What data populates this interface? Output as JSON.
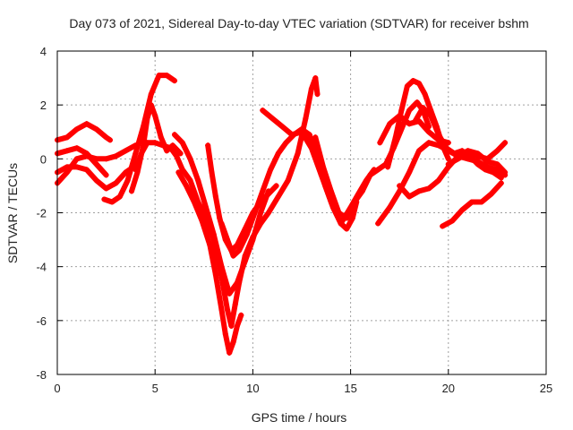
{
  "chart_data": {
    "type": "scatter",
    "title": "Day 073 of 2021, Sidereal Day-to-day VTEC variation (SDTVAR) for receiver bshm",
    "xlabel": "GPS time / hours",
    "ylabel": "SDTVAR / TECUs",
    "xlim": [
      0,
      25
    ],
    "ylim": [
      -8,
      4
    ],
    "xticks": [
      "0",
      "5",
      "10",
      "15",
      "20",
      "25"
    ],
    "yticks": [
      "-8",
      "-6",
      "-4",
      "-2",
      "0",
      "2",
      "4"
    ],
    "grid": true,
    "marker": "plus",
    "color": "#ff0000",
    "series": [
      {
        "x": [
          0,
          0.5,
          1.0,
          1.5,
          2.0,
          2.5,
          2.7
        ],
        "y": [
          0.7,
          0.8,
          1.1,
          1.3,
          1.1,
          0.8,
          0.7
        ]
      },
      {
        "x": [
          0,
          0.5,
          1.0,
          1.5,
          2.0,
          2.5
        ],
        "y": [
          0.2,
          0.3,
          0.4,
          0.2,
          -0.2,
          -0.6
        ]
      },
      {
        "x": [
          0,
          0.5,
          1.0,
          1.5,
          2.0,
          2.5,
          3.0,
          3.5,
          3.9
        ],
        "y": [
          -0.5,
          -0.3,
          -0.3,
          -0.4,
          -0.8,
          -1.1,
          -0.9,
          -0.5,
          -0.3
        ]
      },
      {
        "x": [
          0,
          0.5,
          1.0,
          1.5,
          2.0,
          2.5,
          3.0,
          3.5,
          4.0
        ],
        "y": [
          -0.9,
          -0.5,
          0.0,
          0.1,
          0.0,
          0.0,
          0.1,
          0.3,
          0.5
        ]
      },
      {
        "x": [
          2.4,
          2.8,
          3.2,
          3.6,
          4.0,
          4.4,
          4.8,
          5.2,
          5.6,
          6.0
        ],
        "y": [
          -1.5,
          -1.6,
          -1.4,
          -0.8,
          0.2,
          1.2,
          2.4,
          3.1,
          3.1,
          2.9
        ]
      },
      {
        "x": [
          3.8,
          4.1,
          4.4,
          4.6,
          4.8,
          5.0,
          5.3,
          5.6,
          5.9,
          6.3
        ],
        "y": [
          -1.2,
          -0.5,
          0.5,
          1.5,
          2.0,
          1.6,
          0.8,
          0.3,
          0.5,
          0.2
        ]
      },
      {
        "x": [
          4.0,
          4.3,
          4.6,
          5.0,
          5.4,
          5.8,
          6.1,
          6.4,
          6.8,
          7.2,
          7.6,
          8.0,
          8.4,
          8.7,
          8.9,
          9.1,
          9.3,
          9.6,
          10.0,
          10.4,
          10.8,
          11.3,
          11.8,
          12.3,
          12.7,
          13.0,
          13.2,
          13.3
        ],
        "y": [
          -0.4,
          0.2,
          0.6,
          0.6,
          0.5,
          0.4,
          0.1,
          -0.4,
          -0.8,
          -1.6,
          -2.2,
          -3.0,
          -4.4,
          -5.6,
          -6.2,
          -5.4,
          -4.6,
          -3.6,
          -2.9,
          -2.4,
          -2.0,
          -1.4,
          -0.8,
          0.2,
          1.5,
          2.6,
          3.0,
          2.4
        ]
      },
      {
        "x": [
          6.2,
          6.6,
          7.0,
          7.4,
          7.8,
          8.1,
          8.4,
          8.6,
          8.8,
          9.0,
          9.2,
          9.4
        ],
        "y": [
          -0.5,
          -1.0,
          -1.6,
          -2.3,
          -3.2,
          -4.3,
          -5.6,
          -6.5,
          -7.2,
          -6.8,
          -6.2,
          -5.8
        ]
      },
      {
        "x": [
          6.0,
          6.4,
          6.8,
          7.2,
          7.6,
          8.0,
          8.4,
          8.8,
          9.2,
          9.6,
          10.0,
          10.4,
          10.8
        ],
        "y": [
          0.9,
          0.6,
          0.0,
          -0.8,
          -1.8,
          -2.8,
          -4.0,
          -5.0,
          -4.6,
          -3.8,
          -3.0,
          -2.0,
          -1.2
        ]
      },
      {
        "x": [
          7.7,
          7.9,
          8.1,
          8.3,
          8.6,
          8.9,
          9.2,
          9.6,
          10.0,
          10.4,
          10.8,
          11.2
        ],
        "y": [
          0.5,
          -0.5,
          -1.4,
          -2.2,
          -3.0,
          -3.4,
          -3.2,
          -2.6,
          -2.0,
          -1.6,
          -1.3,
          -1.0
        ]
      },
      {
        "x": [
          8.4,
          8.7,
          9.0,
          9.3,
          9.7,
          10.1,
          10.5,
          10.9,
          11.3,
          11.7,
          12.1,
          12.5,
          12.9,
          13.3,
          13.7,
          14.1,
          14.5,
          14.8,
          15.1,
          15.3
        ],
        "y": [
          -2.4,
          -3.0,
          -3.6,
          -3.4,
          -2.8,
          -2.0,
          -1.2,
          -0.4,
          0.2,
          0.6,
          0.9,
          1.1,
          0.9,
          0.0,
          -1.0,
          -1.8,
          -2.4,
          -2.6,
          -2.2,
          -1.6
        ]
      },
      {
        "x": [
          10.5,
          11.0,
          11.5,
          12.0,
          12.5,
          13.0,
          13.5,
          14.0,
          14.5,
          15.0,
          15.4,
          15.8,
          16.2
        ],
        "y": [
          1.8,
          1.5,
          1.2,
          0.9,
          1.0,
          0.4,
          -0.6,
          -1.6,
          -2.4,
          -1.8,
          -1.3,
          -0.8,
          -0.4
        ]
      },
      {
        "x": [
          13.2,
          13.6,
          14.0,
          14.4,
          14.8,
          15.2,
          15.6,
          16.0,
          16.4,
          16.8,
          17.2,
          17.6,
          18.0,
          18.4,
          18.7,
          19.0
        ],
        "y": [
          0.8,
          -0.3,
          -1.2,
          -2.0,
          -2.2,
          -1.6,
          -1.2,
          -0.6,
          -0.4,
          -0.2,
          0.4,
          1.1,
          1.8,
          2.1,
          1.8,
          1.2
        ]
      },
      {
        "x": [
          16.5,
          17.0,
          17.5,
          18.0,
          18.5,
          19.0,
          19.5,
          20.0
        ],
        "y": [
          0.6,
          1.3,
          1.6,
          1.3,
          1.4,
          1.0,
          0.7,
          0.6
        ]
      },
      {
        "x": [
          16.4,
          17.0,
          17.5,
          18.0,
          18.5,
          19.0,
          19.5,
          20.0,
          20.5,
          21.0,
          21.5,
          22.0,
          22.5,
          22.9
        ],
        "y": [
          -2.4,
          -1.8,
          -1.2,
          -0.5,
          0.3,
          0.6,
          0.5,
          0.3,
          0.1,
          0.0,
          -0.1,
          -0.3,
          -0.4,
          -0.6
        ]
      },
      {
        "x": [
          16.9,
          17.3,
          17.6,
          17.9,
          18.2,
          18.5,
          18.8,
          19.1,
          19.4,
          19.7,
          20.0
        ],
        "y": [
          -0.3,
          0.8,
          1.8,
          2.7,
          2.9,
          2.8,
          2.4,
          1.8,
          1.2,
          0.5,
          0.0
        ]
      },
      {
        "x": [
          17.5,
          18.0,
          18.5,
          19.0,
          19.5,
          20.0,
          20.5,
          21.0,
          21.5,
          22.0,
          22.5,
          22.9
        ],
        "y": [
          -1.0,
          -1.4,
          -1.2,
          -1.1,
          -0.8,
          -0.3,
          0.1,
          0.3,
          0.2,
          -0.1,
          -0.2,
          -0.5
        ]
      },
      {
        "x": [
          18.3,
          18.7,
          19.1,
          19.5,
          19.9,
          20.3,
          20.7,
          21.1,
          21.5,
          21.9,
          22.3,
          22.7
        ],
        "y": [
          1.4,
          1.9,
          1.6,
          0.9,
          0.4,
          0.2,
          0.3,
          0.1,
          -0.2,
          -0.4,
          -0.5,
          -0.7
        ]
      },
      {
        "x": [
          19.7,
          20.2,
          20.7,
          21.2,
          21.7,
          22.2,
          22.7
        ],
        "y": [
          -2.5,
          -2.3,
          -1.9,
          -1.6,
          -1.6,
          -1.3,
          -0.9
        ]
      },
      {
        "x": [
          20.0,
          20.5,
          21.0,
          21.5,
          22.0,
          22.5,
          22.9
        ],
        "y": [
          -0.2,
          0.0,
          0.2,
          0.1,
          0.0,
          0.3,
          0.6
        ]
      }
    ]
  }
}
